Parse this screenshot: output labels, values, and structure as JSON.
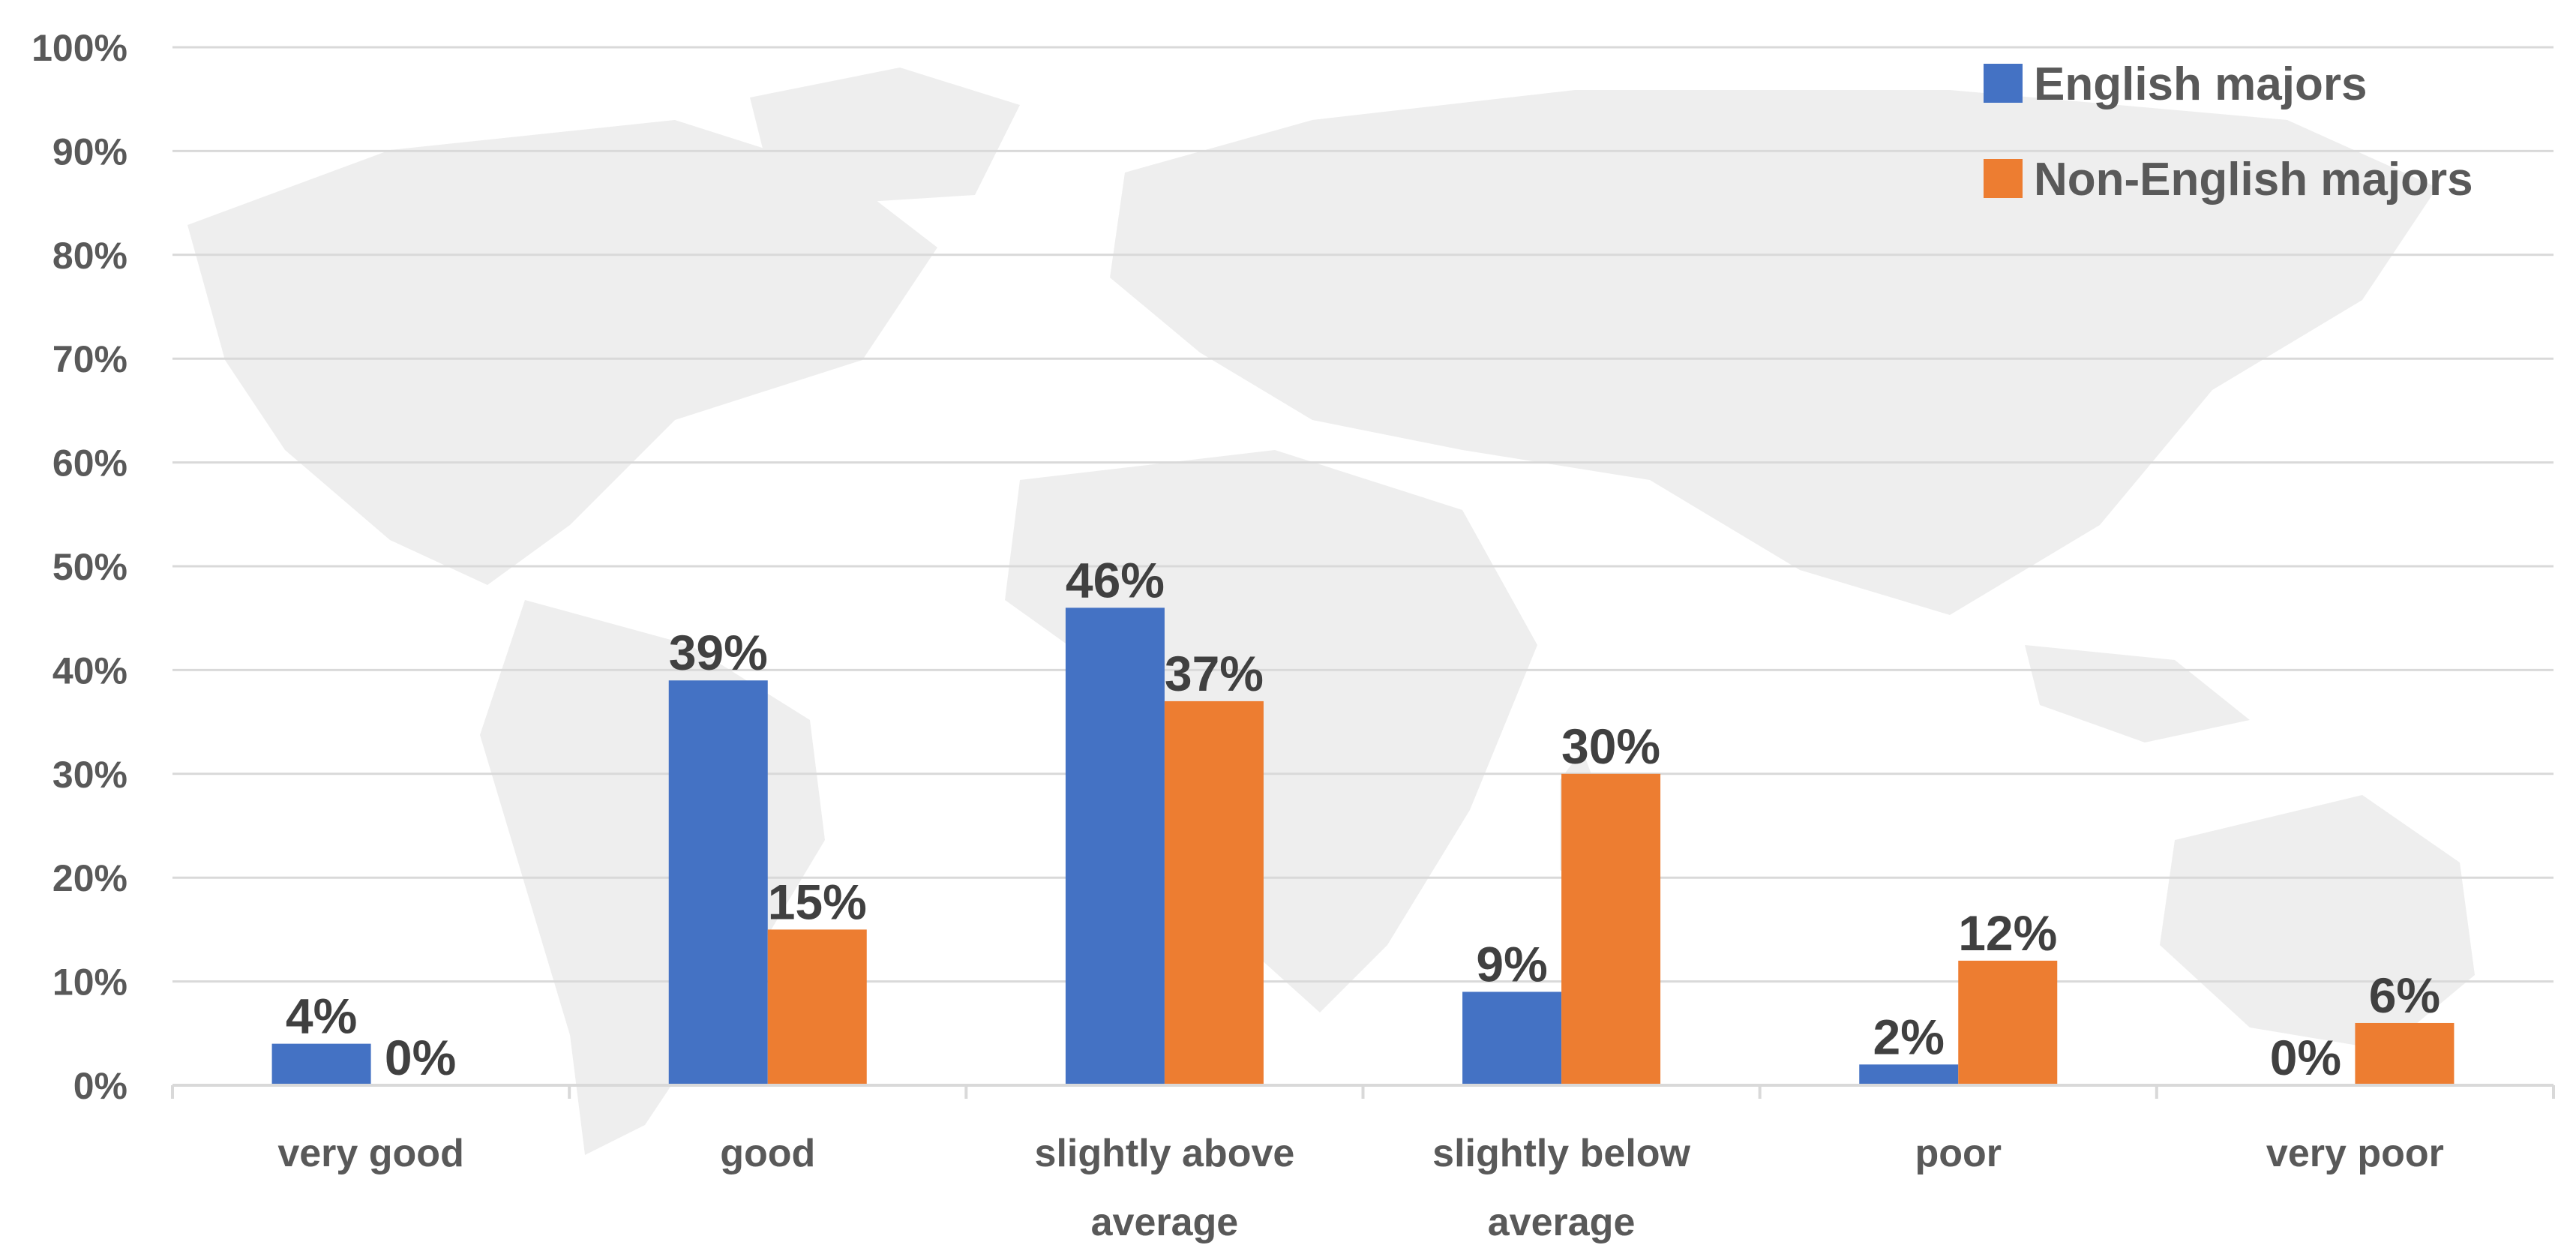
{
  "chart_data": {
    "type": "bar",
    "categories": [
      [
        "very good"
      ],
      [
        "good"
      ],
      [
        "slightly above",
        "average"
      ],
      [
        "slightly below",
        "average"
      ],
      [
        "poor"
      ],
      [
        "very poor"
      ]
    ],
    "series": [
      {
        "name": "English majors",
        "color": "#4472C4",
        "values": [
          4,
          39,
          46,
          9,
          2,
          0
        ],
        "labels": [
          "4%",
          "39%",
          "46%",
          "9%",
          "2%",
          "0%"
        ]
      },
      {
        "name": "Non-English majors",
        "color": "#ED7D31",
        "values": [
          0,
          15,
          37,
          30,
          12,
          6
        ],
        "labels": [
          "0%",
          "15%",
          "37%",
          "30%",
          "12%",
          "6%"
        ]
      }
    ],
    "y_ticks": [
      "0%",
      "10%",
      "20%",
      "30%",
      "40%",
      "50%",
      "60%",
      "70%",
      "80%",
      "90%",
      "100%"
    ],
    "ylim": [
      0,
      100
    ],
    "grid": true,
    "legend_position": "top-right",
    "background": "faint world map"
  }
}
